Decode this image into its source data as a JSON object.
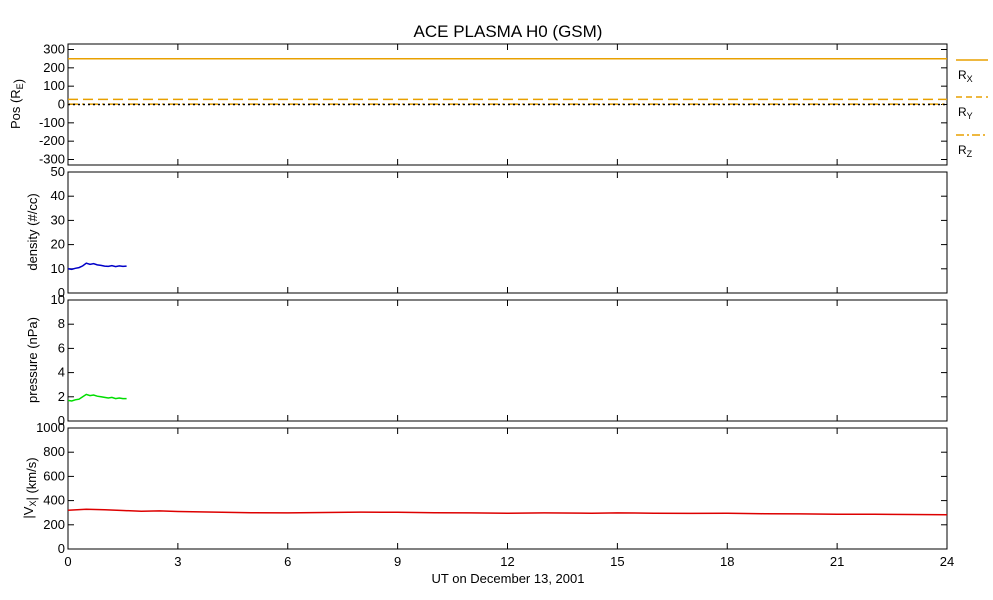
{
  "title": "ACE PLASMA H0 (GSM)",
  "xlabel": "UT on December 13, 2001",
  "x_ticks": [
    "0",
    "3",
    "6",
    "9",
    "12",
    "15",
    "18",
    "21",
    "24"
  ],
  "colors": {
    "pos": "#e8a000",
    "density": "#0000c8",
    "pressure": "#00dd00",
    "vx": "#dd0000",
    "axes": "#000000"
  },
  "chart_data": [
    {
      "type": "line",
      "name": "position",
      "ylabel": "Pos (R_E)",
      "xlim": [
        0,
        24
      ],
      "ylim": [
        -330,
        330
      ],
      "y_ticks": [
        "300",
        "200",
        "100",
        "0",
        "-100",
        "-200",
        "-300"
      ],
      "legend": {
        "placement": "right-outside",
        "entries": [
          "R_X",
          "R_Y",
          "R_Z"
        ]
      },
      "series": [
        {
          "name": "R_X",
          "style": "solid",
          "x": [
            0,
            24
          ],
          "values": [
            250,
            250
          ]
        },
        {
          "name": "R_Y",
          "style": "dashed",
          "x": [
            0,
            24
          ],
          "values": [
            28,
            28
          ]
        },
        {
          "name": "R_Z",
          "style": "dash-dot",
          "x": [
            0,
            24
          ],
          "values": [
            2,
            2
          ]
        }
      ],
      "extra_series": [
        {
          "style": "dotted-black",
          "x": [
            0,
            24
          ],
          "values": [
            0,
            0
          ]
        }
      ]
    },
    {
      "type": "line",
      "name": "density",
      "ylabel": "density (#/cc)",
      "xlim": [
        0,
        24
      ],
      "ylim": [
        0,
        50
      ],
      "y_ticks": [
        "50",
        "40",
        "30",
        "20",
        "10",
        "0"
      ],
      "series": [
        {
          "x": [
            0,
            0.1,
            0.2,
            0.3,
            0.4,
            0.5,
            0.6,
            0.7,
            0.8,
            0.9,
            1.0,
            1.1,
            1.2,
            1.3,
            1.4,
            1.5,
            1.6
          ],
          "values": [
            10,
            9.8,
            10.2,
            10.5,
            11.2,
            12.3,
            11.8,
            12.1,
            11.6,
            11.4,
            11.1,
            11.0,
            11.3,
            10.9,
            11.2,
            11.0,
            11.1
          ]
        }
      ]
    },
    {
      "type": "line",
      "name": "pressure",
      "ylabel": "pressure (nPa)",
      "xlim": [
        0,
        24
      ],
      "ylim": [
        0,
        10
      ],
      "y_ticks": [
        "10",
        "8",
        "6",
        "4",
        "2",
        "0"
      ],
      "series": [
        {
          "x": [
            0,
            0.1,
            0.2,
            0.3,
            0.4,
            0.5,
            0.6,
            0.7,
            0.8,
            0.9,
            1.0,
            1.1,
            1.2,
            1.3,
            1.4,
            1.5,
            1.6
          ],
          "values": [
            1.7,
            1.65,
            1.75,
            1.8,
            2.0,
            2.2,
            2.1,
            2.15,
            2.05,
            2.0,
            1.95,
            1.9,
            1.95,
            1.85,
            1.9,
            1.85,
            1.85
          ]
        }
      ]
    },
    {
      "type": "line",
      "name": "vx",
      "ylabel": "|V_X| (km/s)",
      "xlim": [
        0,
        24
      ],
      "ylim": [
        0,
        1000
      ],
      "y_ticks": [
        "1000",
        "800",
        "600",
        "400",
        "200",
        "0"
      ],
      "series": [
        {
          "x": [
            0,
            0.5,
            1,
            1.5,
            2,
            2.5,
            3,
            4,
            5,
            6,
            7,
            8,
            9,
            10,
            11,
            12,
            13,
            14,
            14.3,
            15,
            16,
            17,
            18,
            19,
            20,
            21,
            22,
            23,
            24
          ],
          "values": [
            320,
            328,
            325,
            318,
            312,
            315,
            310,
            305,
            300,
            298,
            302,
            305,
            303,
            300,
            298,
            296,
            298,
            297,
            295,
            298,
            296,
            294,
            295,
            292,
            290,
            288,
            287,
            285,
            283
          ]
        }
      ]
    }
  ]
}
